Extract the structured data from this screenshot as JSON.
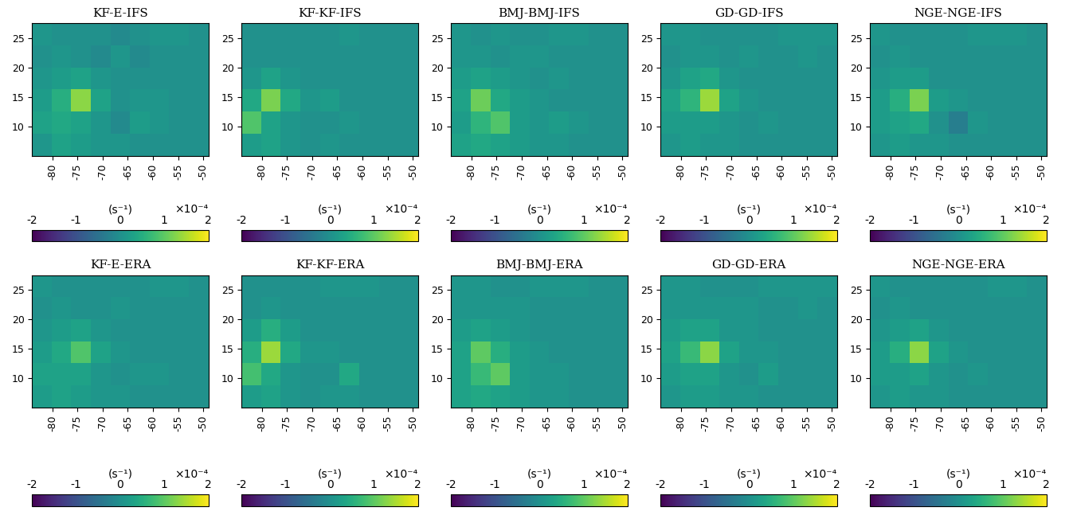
{
  "chart_data": [
    {
      "type": "heatmap",
      "title": "KF-E-IFS",
      "xlim": [
        -84,
        -49
      ],
      "ylim": [
        5,
        27.5
      ],
      "xticks": [
        -80,
        -75,
        -70,
        -65,
        -60,
        -55,
        -50
      ],
      "yticks": [
        10,
        15,
        20,
        25
      ],
      "cells": [
        [
          0.1,
          0.3,
          0.2,
          0.1,
          0.1,
          0.0,
          0.0,
          0.0,
          0.0
        ],
        [
          0.3,
          0.4,
          0.3,
          0.1,
          -0.1,
          0.2,
          0.1,
          0.0,
          0.0
        ],
        [
          0.2,
          0.5,
          1.3,
          0.3,
          0.0,
          0.1,
          0.1,
          0.0,
          0.0
        ],
        [
          0.1,
          0.2,
          0.3,
          0.1,
          0.0,
          0.0,
          0.0,
          0.0,
          0.0
        ],
        [
          0.0,
          0.1,
          0.0,
          -0.1,
          0.1,
          -0.1,
          0.0,
          0.0,
          0.0
        ],
        [
          0.1,
          0.0,
          0.0,
          0.0,
          -0.1,
          0.0,
          0.1,
          0.1,
          0.0
        ]
      ],
      "colorbar": {
        "range": [
          -2,
          2
        ],
        "ticks": [
          -2,
          -1,
          0,
          1,
          2
        ],
        "label": "(s⁻¹)",
        "multiplier": "×10⁻⁴"
      }
    },
    {
      "type": "heatmap",
      "title": "KF-KF-IFS",
      "xlim": [
        -84,
        -49
      ],
      "ylim": [
        5,
        27.5
      ],
      "xticks": [
        -80,
        -75,
        -70,
        -65,
        -60,
        -55,
        -50
      ],
      "yticks": [
        10,
        15,
        20,
        25
      ],
      "cells": [
        [
          0.2,
          0.3,
          0.1,
          0.0,
          0.1,
          0.0,
          0.0,
          0.0,
          0.0
        ],
        [
          0.9,
          0.3,
          0.1,
          0.0,
          0.0,
          0.1,
          0.0,
          0.0,
          0.0
        ],
        [
          0.4,
          1.2,
          0.4,
          0.1,
          0.2,
          0.0,
          0.0,
          0.0,
          0.0
        ],
        [
          0.1,
          0.3,
          0.1,
          0.0,
          0.0,
          0.0,
          0.0,
          0.0,
          0.0
        ],
        [
          0.0,
          0.0,
          0.0,
          0.0,
          0.0,
          0.0,
          0.0,
          0.0,
          0.0
        ],
        [
          0.0,
          0.0,
          0.0,
          0.0,
          0.0,
          0.1,
          0.0,
          0.0,
          0.0
        ]
      ],
      "colorbar": {
        "range": [
          -2,
          2
        ],
        "ticks": [
          -2,
          -1,
          0,
          1,
          2
        ],
        "label": "(s⁻¹)",
        "multiplier": "×10⁻⁴"
      }
    },
    {
      "type": "heatmap",
      "title": "BMJ-BMJ-IFS",
      "xlim": [
        -84,
        -49
      ],
      "ylim": [
        5,
        27.5
      ],
      "xticks": [
        -80,
        -75,
        -70,
        -65,
        -60,
        -55,
        -50
      ],
      "yticks": [
        10,
        15,
        20,
        25
      ],
      "cells": [
        [
          0.3,
          0.4,
          0.3,
          0.2,
          0.1,
          0.1,
          0.0,
          0.0,
          0.0
        ],
        [
          0.2,
          0.6,
          0.9,
          0.2,
          0.1,
          0.2,
          0.1,
          0.0,
          0.0
        ],
        [
          0.3,
          1.1,
          0.4,
          0.2,
          0.1,
          0.0,
          0.0,
          0.0,
          0.0
        ],
        [
          0.2,
          0.3,
          0.2,
          0.1,
          0.0,
          0.1,
          0.0,
          0.0,
          0.0
        ],
        [
          0.1,
          0.1,
          0.0,
          0.1,
          0.1,
          0.0,
          0.0,
          0.0,
          0.0
        ],
        [
          0.1,
          0.0,
          0.1,
          0.0,
          0.0,
          0.1,
          0.1,
          0.0,
          0.0
        ]
      ],
      "colorbar": {
        "range": [
          -2,
          2
        ],
        "ticks": [
          -2,
          -1,
          0,
          1,
          2
        ],
        "label": "(s⁻¹)",
        "multiplier": "×10⁻⁴"
      }
    },
    {
      "type": "heatmap",
      "title": "GD-GD-IFS",
      "xlim": [
        -84,
        -49
      ],
      "ylim": [
        5,
        27.5
      ],
      "xticks": [
        -80,
        -75,
        -70,
        -65,
        -60,
        -55,
        -50
      ],
      "yticks": [
        10,
        15,
        20,
        25
      ],
      "cells": [
        [
          0.1,
          0.2,
          0.1,
          0.1,
          0.0,
          0.0,
          0.0,
          0.0,
          0.0
        ],
        [
          0.2,
          0.2,
          0.2,
          0.1,
          0.0,
          0.1,
          0.0,
          0.0,
          0.0
        ],
        [
          0.3,
          0.6,
          1.4,
          0.3,
          0.1,
          0.0,
          0.0,
          0.0,
          0.0
        ],
        [
          0.1,
          0.3,
          0.4,
          0.1,
          0.0,
          0.0,
          0.0,
          0.0,
          0.0
        ],
        [
          0.0,
          0.1,
          0.1,
          0.0,
          0.1,
          0.0,
          0.0,
          0.1,
          0.0
        ],
        [
          0.1,
          0.1,
          0.0,
          0.0,
          0.0,
          0.0,
          0.1,
          0.1,
          0.1
        ]
      ],
      "colorbar": {
        "range": [
          -2,
          2
        ],
        "ticks": [
          -2,
          -1,
          0,
          1,
          2
        ],
        "label": "(s⁻¹)",
        "multiplier": "×10⁻⁴"
      }
    },
    {
      "type": "heatmap",
      "title": "NGE-NGE-IFS",
      "xlim": [
        -84,
        -49
      ],
      "ylim": [
        5,
        27.5
      ],
      "xticks": [
        -80,
        -75,
        -70,
        -65,
        -60,
        -55,
        -50
      ],
      "yticks": [
        10,
        15,
        20,
        25
      ],
      "cells": [
        [
          0.1,
          0.2,
          0.1,
          0.1,
          0.0,
          0.0,
          0.0,
          0.0,
          0.0
        ],
        [
          0.2,
          0.3,
          0.4,
          0.0,
          -0.3,
          0.1,
          0.0,
          0.0,
          0.0
        ],
        [
          0.2,
          0.5,
          1.2,
          0.2,
          0.1,
          0.0,
          0.0,
          0.0,
          0.0
        ],
        [
          0.1,
          0.2,
          0.2,
          0.0,
          0.0,
          0.0,
          0.0,
          0.0,
          0.0
        ],
        [
          0.0,
          0.1,
          0.0,
          0.0,
          0.0,
          0.0,
          0.0,
          0.0,
          0.0
        ],
        [
          0.1,
          0.0,
          0.0,
          0.0,
          0.0,
          0.1,
          0.1,
          0.1,
          0.0
        ]
      ],
      "colorbar": {
        "range": [
          -2,
          2
        ],
        "ticks": [
          -2,
          -1,
          0,
          1,
          2
        ],
        "label": "(s⁻¹)",
        "multiplier": "×10⁻⁴"
      }
    },
    {
      "type": "heatmap",
      "title": "KF-E-ERA",
      "xlim": [
        -84,
        -49
      ],
      "ylim": [
        5,
        27.5
      ],
      "xticks": [
        -80,
        -75,
        -70,
        -65,
        -60,
        -55,
        -50
      ],
      "yticks": [
        10,
        15,
        20,
        25
      ],
      "cells": [
        [
          0.2,
          0.3,
          0.2,
          0.1,
          0.1,
          0.0,
          0.0,
          0.0,
          0.0
        ],
        [
          0.3,
          0.3,
          0.3,
          0.1,
          0.0,
          0.1,
          0.1,
          0.0,
          0.0
        ],
        [
          0.2,
          0.4,
          0.9,
          0.3,
          0.1,
          0.0,
          0.0,
          0.0,
          0.0
        ],
        [
          0.1,
          0.2,
          0.3,
          0.1,
          0.0,
          0.0,
          0.0,
          0.0,
          0.0
        ],
        [
          0.0,
          0.1,
          0.0,
          0.0,
          0.1,
          0.0,
          0.0,
          0.0,
          0.0
        ],
        [
          0.1,
          0.0,
          0.0,
          0.0,
          0.0,
          0.0,
          0.1,
          0.1,
          0.0
        ]
      ],
      "colorbar": {
        "range": [
          -2,
          2
        ],
        "ticks": [
          -2,
          -1,
          0,
          1,
          2
        ],
        "label": "(s⁻¹)",
        "multiplier": "×10⁻⁴"
      }
    },
    {
      "type": "heatmap",
      "title": "KF-KF-ERA",
      "xlim": [
        -84,
        -49
      ],
      "ylim": [
        5,
        27.5
      ],
      "xticks": [
        -80,
        -75,
        -70,
        -65,
        -60,
        -55,
        -50
      ],
      "yticks": [
        10,
        15,
        20,
        25
      ],
      "cells": [
        [
          0.2,
          0.3,
          0.1,
          0.0,
          0.1,
          0.1,
          0.0,
          0.0,
          0.0
        ],
        [
          0.8,
          0.4,
          0.1,
          0.0,
          0.0,
          0.4,
          0.0,
          0.0,
          0.0
        ],
        [
          0.5,
          1.4,
          0.4,
          0.1,
          0.1,
          0.0,
          0.0,
          0.0,
          0.0
        ],
        [
          0.2,
          0.5,
          0.2,
          0.0,
          0.0,
          0.0,
          0.0,
          0.0,
          0.0
        ],
        [
          0.0,
          0.1,
          0.0,
          0.0,
          0.0,
          0.0,
          0.0,
          0.0,
          0.0
        ],
        [
          0.0,
          0.0,
          0.0,
          0.0,
          0.1,
          0.1,
          0.1,
          0.0,
          0.0
        ]
      ],
      "colorbar": {
        "range": [
          -2,
          2
        ],
        "ticks": [
          -2,
          -1,
          0,
          1,
          2
        ],
        "label": "(s⁻¹)",
        "multiplier": "×10⁻⁴"
      }
    },
    {
      "type": "heatmap",
      "title": "BMJ-BMJ-ERA",
      "xlim": [
        -84,
        -49
      ],
      "ylim": [
        5,
        27.5
      ],
      "xticks": [
        -80,
        -75,
        -70,
        -65,
        -60,
        -55,
        -50
      ],
      "yticks": [
        10,
        15,
        20,
        25
      ],
      "cells": [
        [
          0.3,
          0.4,
          0.3,
          0.2,
          0.1,
          0.1,
          0.0,
          0.0,
          0.0
        ],
        [
          0.3,
          0.7,
          1.0,
          0.2,
          0.1,
          0.1,
          0.0,
          0.0,
          0.0
        ],
        [
          0.3,
          1.0,
          0.5,
          0.2,
          0.1,
          0.0,
          0.0,
          0.0,
          0.0
        ],
        [
          0.2,
          0.3,
          0.2,
          0.1,
          0.0,
          0.0,
          0.0,
          0.0,
          0.0
        ],
        [
          0.1,
          0.1,
          0.1,
          0.1,
          0.0,
          0.0,
          0.0,
          0.0,
          0.0
        ],
        [
          0.1,
          0.1,
          0.0,
          0.0,
          0.1,
          0.1,
          0.1,
          0.0,
          0.0
        ]
      ],
      "colorbar": {
        "range": [
          -2,
          2
        ],
        "ticks": [
          -2,
          -1,
          0,
          1,
          2
        ],
        "label": "(s⁻¹)",
        "multiplier": "×10⁻⁴"
      }
    },
    {
      "type": "heatmap",
      "title": "GD-GD-ERA",
      "xlim": [
        -84,
        -49
      ],
      "ylim": [
        5,
        27.5
      ],
      "xticks": [
        -80,
        -75,
        -70,
        -65,
        -60,
        -55,
        -50
      ],
      "yticks": [
        10,
        15,
        20,
        25
      ],
      "cells": [
        [
          0.1,
          0.2,
          0.2,
          0.1,
          0.1,
          0.0,
          0.0,
          0.0,
          0.0
        ],
        [
          0.2,
          0.3,
          0.3,
          0.1,
          0.0,
          0.2,
          0.0,
          0.0,
          0.0
        ],
        [
          0.3,
          0.7,
          1.3,
          0.3,
          0.1,
          0.1,
          0.0,
          0.0,
          0.0
        ],
        [
          0.2,
          0.3,
          0.3,
          0.1,
          0.1,
          0.0,
          0.0,
          0.0,
          0.0
        ],
        [
          0.1,
          0.1,
          0.1,
          0.1,
          0.1,
          0.0,
          0.0,
          0.1,
          0.0
        ],
        [
          0.1,
          0.1,
          0.0,
          0.0,
          0.0,
          0.1,
          0.1,
          0.1,
          0.1
        ]
      ],
      "colorbar": {
        "range": [
          -2,
          2
        ],
        "ticks": [
          -2,
          -1,
          0,
          1,
          2
        ],
        "label": "(s⁻¹)",
        "multiplier": "×10⁻⁴"
      }
    },
    {
      "type": "heatmap",
      "title": "NGE-NGE-ERA",
      "xlim": [
        -84,
        -49
      ],
      "ylim": [
        5,
        27.5
      ],
      "xticks": [
        -80,
        -75,
        -70,
        -65,
        -60,
        -55,
        -50
      ],
      "yticks": [
        10,
        15,
        20,
        25
      ],
      "cells": [
        [
          0.1,
          0.2,
          0.1,
          0.1,
          0.0,
          0.0,
          0.0,
          0.0,
          0.0
        ],
        [
          0.2,
          0.2,
          0.3,
          0.1,
          0.0,
          0.1,
          0.0,
          0.0,
          0.0
        ],
        [
          0.2,
          0.5,
          1.3,
          0.3,
          0.1,
          0.0,
          0.0,
          0.0,
          0.0
        ],
        [
          0.1,
          0.2,
          0.3,
          0.1,
          0.0,
          0.0,
          0.0,
          0.0,
          0.0
        ],
        [
          0.0,
          0.1,
          0.0,
          0.0,
          0.0,
          0.0,
          0.0,
          0.0,
          0.0
        ],
        [
          0.1,
          0.0,
          0.0,
          0.0,
          0.0,
          0.0,
          0.1,
          0.1,
          0.0
        ]
      ],
      "colorbar": {
        "range": [
          -2,
          2
        ],
        "ticks": [
          -2,
          -1,
          0,
          1,
          2
        ],
        "label": "(s⁻¹)",
        "multiplier": "×10⁻⁴"
      }
    }
  ]
}
